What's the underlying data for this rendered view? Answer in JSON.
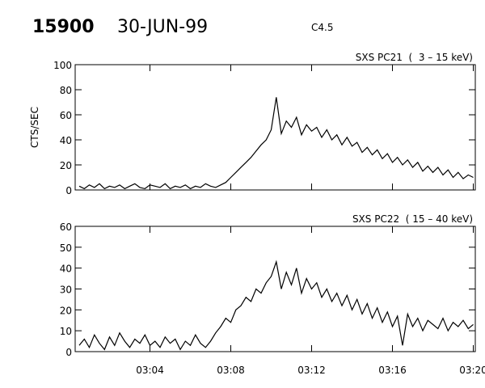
{
  "header": {
    "id": "15900",
    "date": "30-JUN-99",
    "class": "C4.5"
  },
  "chart_data": [
    {
      "type": "line",
      "title": "SXS PC21  (  3 – 15 keV)",
      "ylabel": "CTS/SEC",
      "x": [
        0.5,
        0.75,
        1,
        1.25,
        1.5,
        1.75,
        2,
        2.25,
        2.5,
        2.75,
        3,
        3.25,
        3.5,
        3.75,
        4,
        4.25,
        4.5,
        4.75,
        5,
        5.25,
        5.5,
        5.75,
        6,
        6.25,
        6.5,
        6.75,
        7,
        7.25,
        7.5,
        7.75,
        8,
        8.25,
        8.5,
        8.75,
        9,
        9.25,
        9.5,
        9.75,
        10,
        10.25,
        10.5,
        10.75,
        11,
        11.25,
        11.5,
        11.75,
        12,
        12.25,
        12.5,
        12.75,
        13,
        13.25,
        13.5,
        13.75,
        14,
        14.25,
        14.5,
        14.75,
        15,
        15.25,
        15.5,
        15.75,
        16,
        16.25,
        16.5,
        16.75,
        17,
        17.25,
        17.5,
        17.75,
        18,
        18.25,
        18.5,
        18.75,
        19,
        19.25,
        19.5,
        19.75,
        20
      ],
      "series": [
        {
          "name": "PC21",
          "color": "#000000",
          "values": [
            3,
            1,
            4,
            2,
            5,
            1,
            3,
            2,
            4,
            1,
            3,
            5,
            2,
            1,
            4,
            3,
            2,
            5,
            1,
            3,
            2,
            4,
            1,
            3,
            2,
            5,
            3,
            2,
            4,
            6,
            10,
            14,
            18,
            22,
            26,
            31,
            36,
            40,
            48,
            74,
            45,
            55,
            50,
            58,
            44,
            52,
            47,
            50,
            42,
            48,
            40,
            44,
            36,
            42,
            35,
            38,
            30,
            34,
            28,
            32,
            25,
            29,
            22,
            26,
            20,
            24,
            18,
            22,
            15,
            19,
            14,
            18,
            12,
            16,
            10,
            14,
            9,
            12,
            10
          ]
        }
      ],
      "xlim": [
        0.3,
        20.1
      ],
      "xticks": [
        {
          "value": 4,
          "label": "03:04"
        },
        {
          "value": 8,
          "label": "03:08"
        },
        {
          "value": 12,
          "label": "03:12"
        },
        {
          "value": 16,
          "label": "03:16"
        },
        {
          "value": 20,
          "label": "03:20"
        }
      ],
      "ylim": [
        0,
        100
      ],
      "yticks": [
        0,
        20,
        40,
        60,
        80,
        100
      ],
      "show_xtick_labels": false
    },
    {
      "type": "line",
      "title": "SXS PC22  ( 15 – 40 keV)",
      "x": [
        0.5,
        0.75,
        1,
        1.25,
        1.5,
        1.75,
        2,
        2.25,
        2.5,
        2.75,
        3,
        3.25,
        3.5,
        3.75,
        4,
        4.25,
        4.5,
        4.75,
        5,
        5.25,
        5.5,
        5.75,
        6,
        6.25,
        6.5,
        6.75,
        7,
        7.25,
        7.5,
        7.75,
        8,
        8.25,
        8.5,
        8.75,
        9,
        9.25,
        9.5,
        9.75,
        10,
        10.25,
        10.5,
        10.75,
        11,
        11.25,
        11.5,
        11.75,
        12,
        12.25,
        12.5,
        12.75,
        13,
        13.25,
        13.5,
        13.75,
        14,
        14.25,
        14.5,
        14.75,
        15,
        15.25,
        15.5,
        15.75,
        16,
        16.25,
        16.5,
        16.75,
        17,
        17.25,
        17.5,
        17.75,
        18,
        18.25,
        18.5,
        18.75,
        19,
        19.25,
        19.5,
        19.75,
        20
      ],
      "series": [
        {
          "name": "PC22",
          "color": "#000000",
          "values": [
            3,
            6,
            2,
            8,
            4,
            1,
            7,
            3,
            9,
            5,
            2,
            6,
            4,
            8,
            3,
            5,
            2,
            7,
            4,
            6,
            1,
            5,
            3,
            8,
            4,
            2,
            5,
            9,
            12,
            16,
            14,
            20,
            22,
            26,
            24,
            30,
            28,
            33,
            36,
            43,
            30,
            38,
            32,
            40,
            28,
            35,
            30,
            33,
            26,
            30,
            24,
            28,
            22,
            27,
            20,
            25,
            18,
            23,
            16,
            21,
            14,
            19,
            12,
            17,
            3,
            18,
            12,
            16,
            10,
            15,
            13,
            11,
            16,
            10,
            14,
            12,
            15,
            11,
            13
          ]
        }
      ],
      "xlim": [
        0.3,
        20.1
      ],
      "xticks": [
        {
          "value": 4,
          "label": "03:04"
        },
        {
          "value": 8,
          "label": "03:08"
        },
        {
          "value": 12,
          "label": "03:12"
        },
        {
          "value": 16,
          "label": "03:16"
        },
        {
          "value": 20,
          "label": "03:20"
        }
      ],
      "ylim": [
        0,
        60
      ],
      "yticks": [
        0,
        10,
        20,
        30,
        40,
        50,
        60
      ],
      "show_xtick_labels": true
    }
  ]
}
